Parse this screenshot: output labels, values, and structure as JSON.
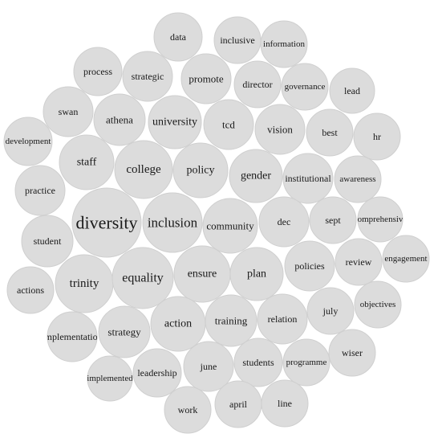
{
  "style": {
    "bubble_fill": "#dcdcdc",
    "bubble_stroke": "#cfcfcf",
    "text_color": "#1a1a1a"
  },
  "words": [
    "data",
    "inclusive",
    "information",
    "process",
    "strategic",
    "promote",
    "director",
    "governance",
    "lead",
    "swan",
    "athena",
    "university",
    "tcd",
    "vision",
    "best",
    "hr",
    "development",
    "staff",
    "college",
    "policy",
    "gender",
    "institutional",
    "awareness",
    "practice",
    "diversity",
    "inclusion",
    "community",
    "dec",
    "sept",
    "comprehensive",
    "student",
    "engagement",
    "trinity",
    "equality",
    "ensure",
    "plan",
    "policies",
    "review",
    "actions",
    "july",
    "objectives",
    "implementation",
    "strategy",
    "action",
    "training",
    "relation",
    "wiser",
    "implemented",
    "leadership",
    "june",
    "students",
    "programme",
    "work",
    "april",
    "line"
  ]
}
